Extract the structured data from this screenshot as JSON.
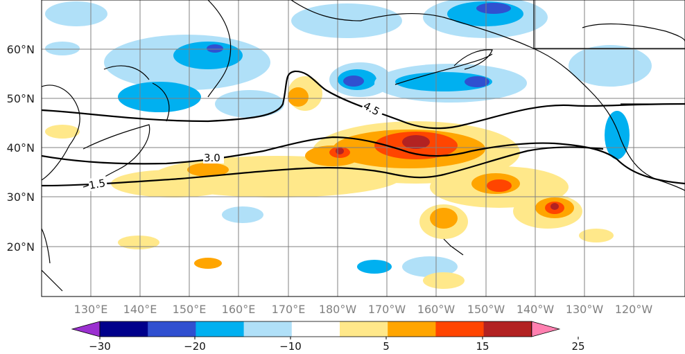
{
  "figure": {
    "type": "map",
    "lat_labels": [
      "60°N",
      "50°N",
      "40°N",
      "30°N",
      "20°N"
    ],
    "lon_labels": [
      "130°E",
      "140°E",
      "150°E",
      "160°E",
      "170°E",
      "180°W",
      "170°W",
      "160°W",
      "150°W",
      "140°W",
      "130°W",
      "120°W"
    ],
    "contour_labels": [
      "4.5",
      "3.0",
      "1.5"
    ],
    "colorbar": {
      "tick_labels": [
        "−30",
        "−20",
        "−10",
        "5",
        "15",
        "25"
      ],
      "colors": [
        "#9b30d0",
        "#00008b",
        "#3050d0",
        "#00b0f0",
        "#b0e0f8",
        "#ffffff",
        "#ffe88a",
        "#ffa500",
        "#ff4500",
        "#b22222",
        "#ff80b0"
      ]
    },
    "colors": {
      "land_line": "#000000",
      "contour": "#000000",
      "grid": "#808080"
    }
  }
}
